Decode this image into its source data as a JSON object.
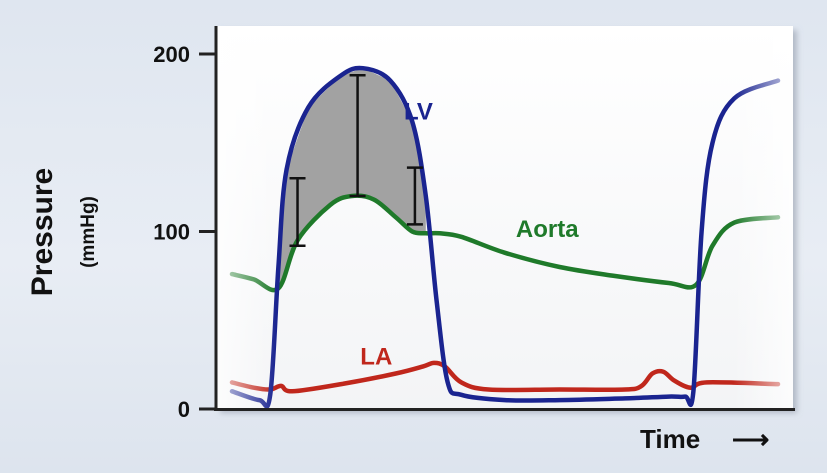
{
  "chart_data": {
    "type": "line",
    "title": "",
    "ylabel": "Pressure",
    "ylabel_unit": "(mmHg)",
    "xlabel": "Time",
    "x_arrow": "⟶",
    "ylim": [
      0,
      200
    ],
    "y_ticks": [
      {
        "value": 0,
        "label": "0"
      },
      {
        "value": 100,
        "label": "100"
      },
      {
        "value": 200,
        "label": "200"
      }
    ],
    "xlim": [
      0,
      1
    ],
    "grid": false,
    "legend": "none",
    "series": [
      {
        "name": "LV",
        "color": "#1a2490",
        "points": [
          [
            0,
            10
          ],
          [
            0.05,
            5
          ],
          [
            0.07,
            8
          ],
          [
            0.085,
            80
          ],
          [
            0.1,
            135
          ],
          [
            0.14,
            170
          ],
          [
            0.2,
            188
          ],
          [
            0.24,
            192
          ],
          [
            0.29,
            185
          ],
          [
            0.33,
            162
          ],
          [
            0.355,
            120
          ],
          [
            0.375,
            60
          ],
          [
            0.395,
            15
          ],
          [
            0.42,
            8
          ],
          [
            0.5,
            5
          ],
          [
            0.6,
            5
          ],
          [
            0.72,
            6
          ],
          [
            0.8,
            7
          ],
          [
            0.83,
            7
          ],
          [
            0.845,
            10
          ],
          [
            0.86,
            100
          ],
          [
            0.88,
            150
          ],
          [
            0.92,
            175
          ],
          [
            1,
            185
          ]
        ]
      },
      {
        "name": "Aorta",
        "color": "#1f7a2a",
        "points": [
          [
            0,
            76
          ],
          [
            0.04,
            73
          ],
          [
            0.085,
            68
          ],
          [
            0.12,
            95
          ],
          [
            0.18,
            115
          ],
          [
            0.22,
            120
          ],
          [
            0.26,
            118
          ],
          [
            0.3,
            108
          ],
          [
            0.33,
            100
          ],
          [
            0.355,
            99
          ],
          [
            0.38,
            99
          ],
          [
            0.42,
            97
          ],
          [
            0.5,
            88
          ],
          [
            0.6,
            80
          ],
          [
            0.7,
            75
          ],
          [
            0.8,
            71
          ],
          [
            0.85,
            70
          ],
          [
            0.88,
            92
          ],
          [
            0.92,
            105
          ],
          [
            1,
            108
          ]
        ]
      },
      {
        "name": "LA",
        "color": "#c0271c",
        "points": [
          [
            0,
            15
          ],
          [
            0.04,
            12
          ],
          [
            0.07,
            11
          ],
          [
            0.09,
            13
          ],
          [
            0.11,
            10
          ],
          [
            0.2,
            14
          ],
          [
            0.3,
            20
          ],
          [
            0.35,
            24
          ],
          [
            0.37,
            26
          ],
          [
            0.39,
            24
          ],
          [
            0.42,
            15
          ],
          [
            0.47,
            11
          ],
          [
            0.6,
            11
          ],
          [
            0.72,
            11
          ],
          [
            0.75,
            13
          ],
          [
            0.77,
            20
          ],
          [
            0.79,
            21
          ],
          [
            0.81,
            16
          ],
          [
            0.84,
            12
          ],
          [
            0.87,
            15
          ],
          [
            1,
            14
          ]
        ]
      }
    ],
    "annotations": [
      {
        "text": "LV",
        "series": "LV",
        "x": 0.315,
        "y": 163
      },
      {
        "text": "Aorta",
        "series": "Aorta",
        "x": 0.52,
        "y": 97
      },
      {
        "text": "LA",
        "series": "LA",
        "x": 0.235,
        "y": 25
      }
    ],
    "error_bars": [
      {
        "x": 0.12,
        "low": 92,
        "high": 130
      },
      {
        "x": 0.23,
        "low": 120,
        "high": 188
      },
      {
        "x": 0.335,
        "low": 104,
        "high": 136
      }
    ]
  }
}
